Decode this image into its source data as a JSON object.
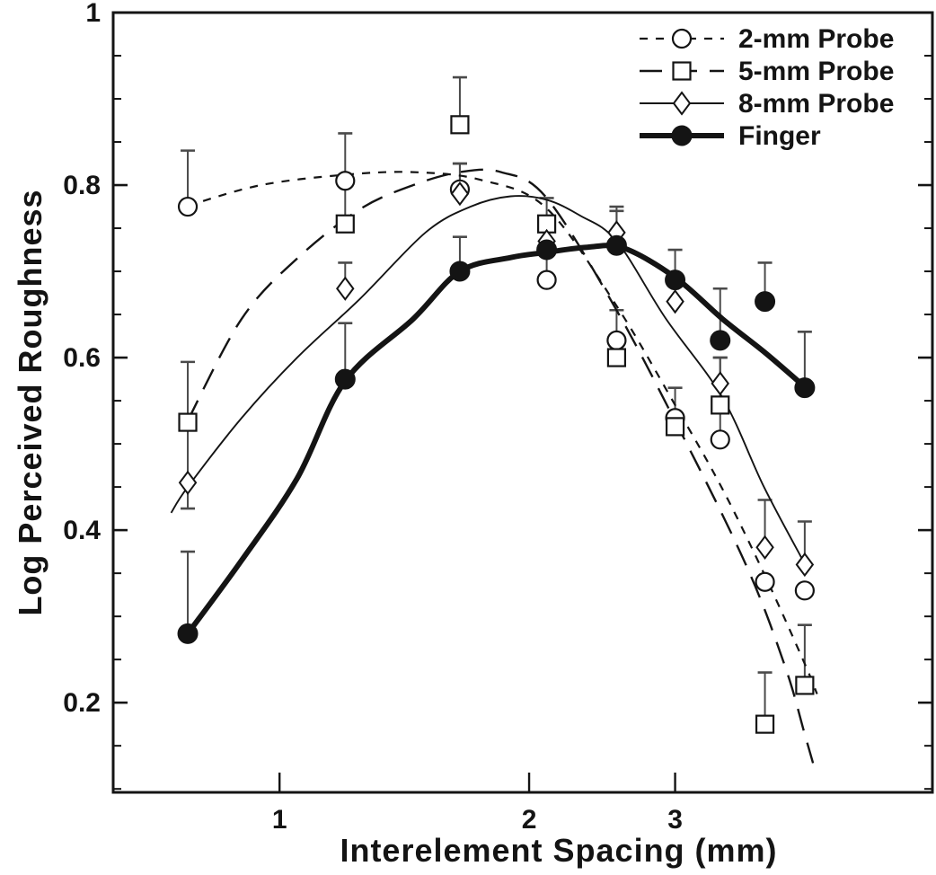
{
  "figure": {
    "background": "#ffffff",
    "ink_color": "#141414",
    "error_bar_color": "#4a4a4a"
  },
  "chart_data": {
    "type": "scatter",
    "title": "",
    "xlabel": "Interelement Spacing (mm)",
    "ylabel": "Log Perceived Roughness",
    "x_scale": "log",
    "xlim": [
      0.63,
      6.13
    ],
    "ylim": [
      0.096,
      1.0
    ],
    "x_ticks": [
      {
        "value": 1,
        "label": "1"
      },
      {
        "value": 2,
        "label": "2"
      },
      {
        "value": 3,
        "label": "3"
      }
    ],
    "y_ticks_major": [
      {
        "value": 1.0,
        "label": "1"
      },
      {
        "value": 0.8,
        "label": "0.8"
      },
      {
        "value": 0.6,
        "label": "0.6"
      },
      {
        "value": 0.4,
        "label": "0.4"
      },
      {
        "value": 0.2,
        "label": "0.2"
      }
    ],
    "y_minor_tick_step": 0.05,
    "legend_position": "top-right",
    "x": [
      0.775,
      1.2,
      1.65,
      2.1,
      2.55,
      3.0,
      3.4,
      3.85,
      4.3
    ],
    "series": [
      {
        "name": "2-mm Probe",
        "marker": "open-circle",
        "line_style": "short-dash",
        "values": [
          0.775,
          0.805,
          0.795,
          0.69,
          0.62,
          0.53,
          0.505,
          0.34,
          0.33
        ],
        "err_up": [
          0.065,
          0.055,
          0.03,
          0.035,
          0.035,
          null,
          0.095,
          null,
          null
        ],
        "err_down": [
          null,
          null,
          null,
          null,
          null,
          null,
          null,
          null,
          null
        ],
        "fit_curve": [
          [
            0.775,
            0.776
          ],
          [
            0.95,
            0.8
          ],
          [
            1.2,
            0.812
          ],
          [
            1.45,
            0.815
          ],
          [
            1.75,
            0.806
          ],
          [
            2.1,
            0.773
          ],
          [
            2.55,
            0.66
          ],
          [
            3.0,
            0.545
          ],
          [
            3.42,
            0.448
          ],
          [
            3.86,
            0.345
          ],
          [
            4.3,
            0.245
          ],
          [
            4.45,
            0.21
          ]
        ]
      },
      {
        "name": "5-mm Probe",
        "marker": "open-square",
        "line_style": "long-dash",
        "values": [
          0.525,
          0.755,
          0.87,
          0.755,
          0.6,
          0.52,
          0.545,
          0.175,
          0.22
        ],
        "err_up": [
          0.07,
          0.05,
          0.055,
          0.03,
          null,
          0.045,
          null,
          0.06,
          0.07
        ],
        "err_down": [
          0.1,
          null,
          null,
          null,
          null,
          null,
          null,
          null,
          null
        ],
        "fit_curve": [
          [
            0.775,
            0.527
          ],
          [
            0.9,
            0.645
          ],
          [
            1.05,
            0.715
          ],
          [
            1.25,
            0.772
          ],
          [
            1.45,
            0.8
          ],
          [
            1.65,
            0.815
          ],
          [
            1.85,
            0.815
          ],
          [
            2.1,
            0.785
          ],
          [
            2.55,
            0.655
          ],
          [
            3.05,
            0.513
          ],
          [
            3.5,
            0.398
          ],
          [
            3.81,
            0.318
          ],
          [
            4.11,
            0.23
          ],
          [
            4.29,
            0.167
          ],
          [
            4.4,
            0.13
          ]
        ]
      },
      {
        "name": "8-mm Probe",
        "marker": "open-diamond",
        "line_style": "solid-thin",
        "values": [
          0.455,
          0.68,
          0.79,
          0.735,
          0.745,
          0.665,
          0.57,
          0.38,
          0.36
        ],
        "err_up": [
          null,
          0.03,
          0.035,
          null,
          0.025,
          null,
          0.03,
          0.055,
          0.05
        ],
        "err_down": [
          null,
          null,
          null,
          null,
          null,
          null,
          null,
          null,
          null
        ],
        "fit_curve": [
          [
            0.74,
            0.42
          ],
          [
            0.775,
            0.45
          ],
          [
            0.9,
            0.53
          ],
          [
            1.05,
            0.6
          ],
          [
            1.25,
            0.668
          ],
          [
            1.5,
            0.745
          ],
          [
            1.7,
            0.775
          ],
          [
            1.9,
            0.787
          ],
          [
            2.1,
            0.783
          ],
          [
            2.3,
            0.765
          ],
          [
            2.55,
            0.735
          ],
          [
            2.92,
            0.646
          ],
          [
            3.42,
            0.554
          ],
          [
            3.84,
            0.45
          ],
          [
            4.3,
            0.361
          ]
        ]
      },
      {
        "name": "Finger",
        "marker": "filled-circle",
        "line_style": "solid-thick",
        "values": [
          0.28,
          0.575,
          0.7,
          0.725,
          0.73,
          0.69,
          0.62,
          0.665,
          0.565
        ],
        "err_up": [
          0.095,
          0.065,
          0.04,
          null,
          0.045,
          0.035,
          0.06,
          0.045,
          0.065
        ],
        "err_down": [
          null,
          null,
          null,
          null,
          null,
          null,
          null,
          null,
          null
        ],
        "fit_curve": [
          [
            0.775,
            0.28
          ],
          [
            0.9,
            0.365
          ],
          [
            1.05,
            0.46
          ],
          [
            1.2,
            0.573
          ],
          [
            1.45,
            0.645
          ],
          [
            1.65,
            0.7
          ],
          [
            1.9,
            0.716
          ],
          [
            2.1,
            0.722
          ],
          [
            2.35,
            0.728
          ],
          [
            2.6,
            0.727
          ],
          [
            3.0,
            0.693
          ],
          [
            3.42,
            0.645
          ],
          [
            3.86,
            0.605
          ],
          [
            4.29,
            0.567
          ]
        ]
      }
    ]
  }
}
